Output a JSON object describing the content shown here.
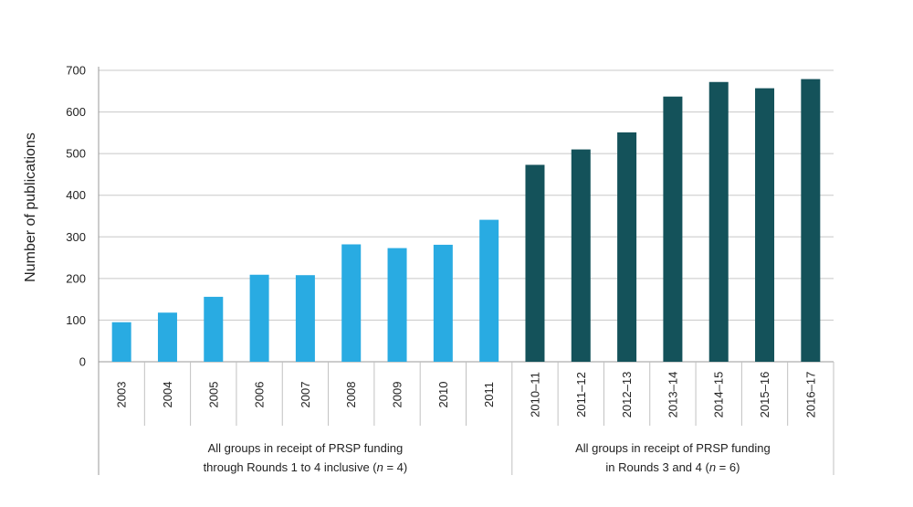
{
  "chart_data": {
    "type": "bar",
    "title": "",
    "xlabel": "",
    "ylabel": "Number of publications",
    "ylim": [
      0,
      700
    ],
    "yticks": [
      0,
      100,
      200,
      300,
      400,
      500,
      600,
      700
    ],
    "grid": true,
    "legend": "none",
    "colors": {
      "group1": "#29abe2",
      "group2": "#14525a"
    },
    "groups": [
      {
        "name_line1": "All groups in receipt of PRSP funding",
        "name_line2_prefix": "through Rounds 1 to 4 inclusive (",
        "name_line2_var": "n",
        "name_line2_suffix": " = 4)",
        "categories": [
          "2003",
          "2004",
          "2005",
          "2006",
          "2007",
          "2008",
          "2009",
          "2010",
          "2011"
        ],
        "values": [
          95,
          118,
          156,
          209,
          208,
          282,
          273,
          281,
          341
        ]
      },
      {
        "name_line1": "All groups in receipt of PRSP funding",
        "name_line2_prefix": "in Rounds 3 and 4 (",
        "name_line2_var": "n",
        "name_line2_suffix": " = 6)",
        "categories": [
          "2010–11",
          "2011–12",
          "2012–13",
          "2013–14",
          "2014–15",
          "2015–16",
          "2016–17"
        ],
        "values": [
          473,
          510,
          551,
          637,
          672,
          657,
          679
        ]
      }
    ]
  }
}
